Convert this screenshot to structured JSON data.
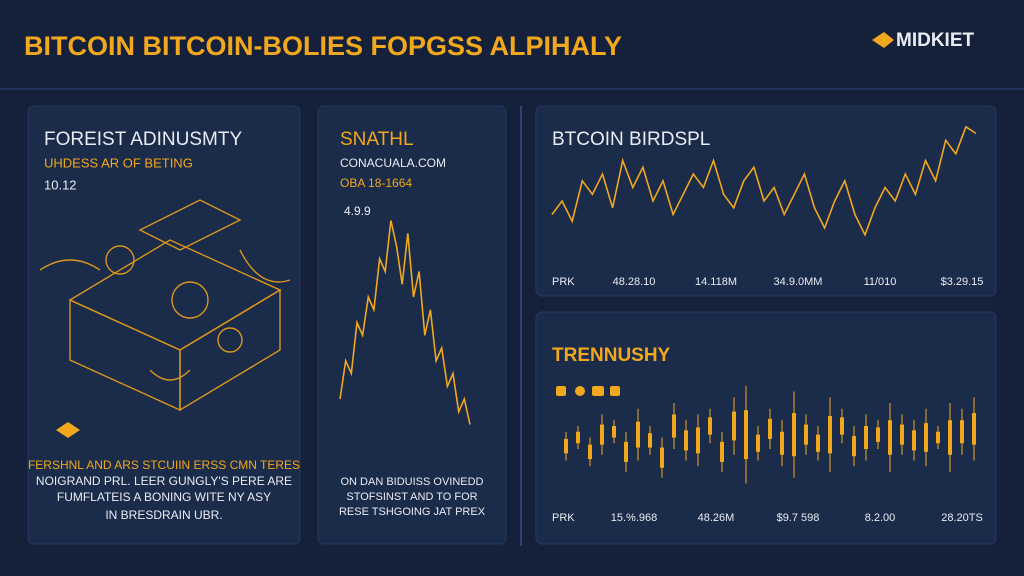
{
  "header": {
    "title": "BITCOIN BITCOIN-BOLIES FOPGSS ALPIHALY",
    "brand": "MIDKIET"
  },
  "panels": [
    {
      "title": "FOREIST ADINUSMTY",
      "subtitle": "UHDESS AR OF BETING",
      "value": "10.12",
      "caption": [
        "FERSHNL AND ARS STCUIIN ERSS CMN TERES",
        "NOIGRAND PRL. LEER GUNGLY'S PERE ARE",
        "FUMFLATEIS A BONING WITE NY ASY",
        "IN BRESDRAIN UBR."
      ]
    },
    {
      "title": "SNATHL",
      "subtitle": "CONACUALA.COM",
      "value": "OBA 18-1664",
      "value2": "4.9.9",
      "chart": {
        "type": "line",
        "color": "#f2a81d",
        "ylim": [
          0,
          100
        ],
        "values": [
          20,
          35,
          30,
          50,
          45,
          60,
          55,
          75,
          70,
          90,
          80,
          65,
          85,
          60,
          70,
          45,
          55,
          35,
          40,
          25,
          30,
          15,
          20,
          10
        ]
      },
      "caption": [
        "ON DAN BIDUISS OVINEDD",
        "STOFSINST AND TO FOR",
        "RESE TSHGOING JAT PREX"
      ]
    },
    {
      "title": "BTCOIN BIRDSPL",
      "chart": {
        "type": "line",
        "color": "#f2a81d",
        "ylim": [
          0,
          100
        ],
        "values": [
          30,
          40,
          25,
          55,
          45,
          60,
          35,
          70,
          50,
          65,
          40,
          55,
          30,
          45,
          60,
          50,
          70,
          45,
          35,
          55,
          65,
          40,
          50,
          30,
          45,
          60,
          35,
          20,
          40,
          55,
          30,
          15,
          35,
          50,
          40,
          60,
          45,
          70,
          55,
          85,
          75,
          95,
          90
        ]
      },
      "x_labels": [
        "PRK",
        "48.28.10",
        "14.118M",
        "34.9.0MM",
        "11/010",
        "$3.29.15"
      ]
    },
    {
      "title": "TRENNUSHY",
      "chart": {
        "type": "candles",
        "color": "#f2a81d",
        "ylim": [
          0,
          100
        ],
        "low": [
          30,
          40,
          25,
          35,
          45,
          20,
          30,
          35,
          15,
          40,
          30,
          25,
          45,
          20,
          35,
          10,
          30,
          40,
          25,
          15,
          35,
          30,
          20,
          45,
          25,
          30,
          40,
          20,
          35,
          30,
          25,
          40,
          20,
          35,
          30
        ],
        "high": [
          55,
          60,
          50,
          70,
          65,
          55,
          75,
          60,
          50,
          80,
          65,
          70,
          75,
          55,
          85,
          95,
          60,
          75,
          65,
          90,
          70,
          60,
          85,
          75,
          60,
          70,
          65,
          80,
          70,
          65,
          75,
          60,
          80,
          75,
          85
        ]
      },
      "x_labels": [
        "PRK",
        "15.%.968",
        "48.26M",
        "$9.7 598",
        "8.2.00",
        "28.20TS"
      ]
    }
  ]
}
